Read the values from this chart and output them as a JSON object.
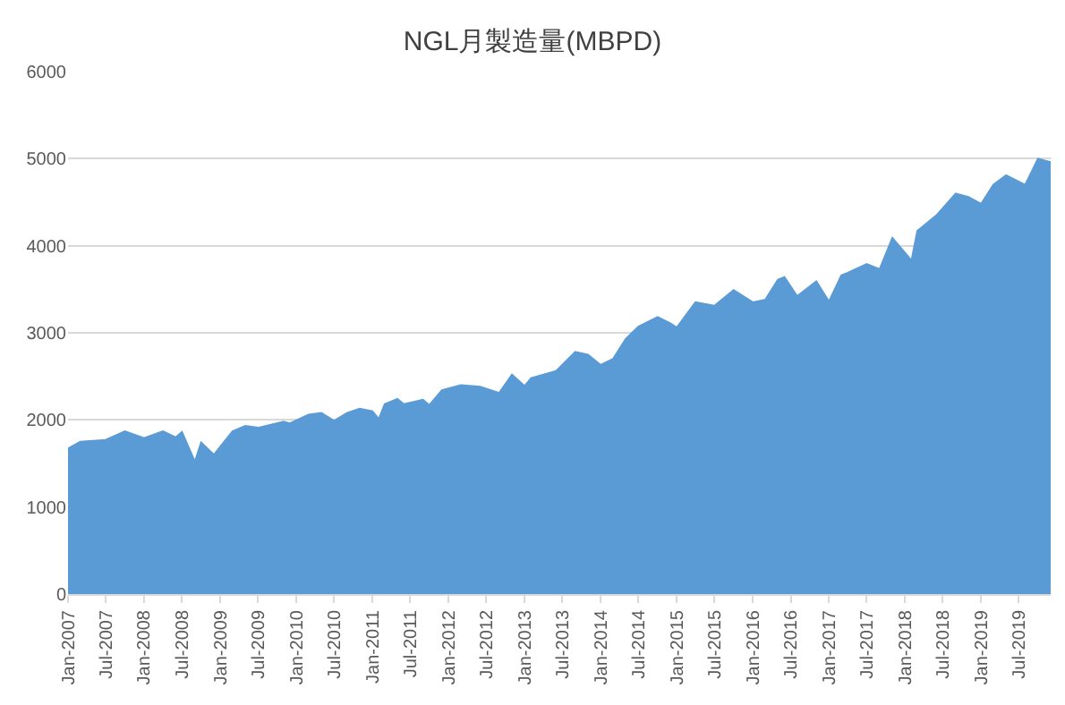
{
  "chart_data": {
    "type": "area",
    "title": "NGL月製造量(MBPD)",
    "x": [
      "2007-01",
      "2007-03",
      "2007-07",
      "2007-10",
      "2008-01",
      "2008-04",
      "2008-06",
      "2008-07",
      "2008-09",
      "2008-10",
      "2008-12",
      "2009-03",
      "2009-05",
      "2009-07",
      "2009-11",
      "2009-12",
      "2010-03",
      "2010-05",
      "2010-07",
      "2010-09",
      "2010-11",
      "2011-01",
      "2011-02",
      "2011-03",
      "2011-05",
      "2011-06",
      "2011-09",
      "2011-10",
      "2011-12",
      "2012-03",
      "2012-06",
      "2012-09",
      "2012-11",
      "2013-01",
      "2013-02",
      "2013-06",
      "2013-09",
      "2013-11",
      "2014-01",
      "2014-03",
      "2014-05",
      "2014-07",
      "2014-10",
      "2014-12",
      "2015-01",
      "2015-04",
      "2015-07",
      "2015-10",
      "2016-01",
      "2016-03",
      "2016-05",
      "2016-06",
      "2016-08",
      "2016-11",
      "2017-01",
      "2017-03",
      "2017-04",
      "2017-07",
      "2017-09",
      "2017-11",
      "2018-02",
      "2018-03",
      "2018-06",
      "2018-09",
      "2018-11",
      "2019-01",
      "2019-03",
      "2019-05",
      "2019-08",
      "2019-10",
      "2019-12"
    ],
    "series": [
      {
        "color": "#5b9bd5",
        "values": [
          1670,
          1750,
          1770,
          1870,
          1790,
          1870,
          1800,
          1860,
          1520,
          1740,
          1600,
          1870,
          1930,
          1910,
          1980,
          1960,
          2060,
          2080,
          1990,
          2080,
          2130,
          2100,
          2010,
          2180,
          2240,
          2180,
          2230,
          2170,
          2340,
          2400,
          2380,
          2310,
          2520,
          2390,
          2480,
          2560,
          2780,
          2750,
          2630,
          2700,
          2930,
          3070,
          3180,
          3110,
          3060,
          3350,
          3310,
          3490,
          3350,
          3380,
          3610,
          3640,
          3420,
          3590,
          3360,
          3660,
          3690,
          3790,
          3730,
          4090,
          3830,
          4170,
          4350,
          4600,
          4560,
          4480,
          4700,
          4810,
          4700,
          5000,
          4960
        ]
      }
    ],
    "xlim": [
      "2007-01",
      "2019-12"
    ],
    "xticks": [
      {
        "value": "2007-01",
        "label": "Jan-2007"
      },
      {
        "value": "2007-07",
        "label": "Jul-2007"
      },
      {
        "value": "2008-01",
        "label": "Jan-2008"
      },
      {
        "value": "2008-07",
        "label": "Jul-2008"
      },
      {
        "value": "2009-01",
        "label": "Jan-2009"
      },
      {
        "value": "2009-07",
        "label": "Jul-2009"
      },
      {
        "value": "2010-01",
        "label": "Jan-2010"
      },
      {
        "value": "2010-07",
        "label": "Jul-2010"
      },
      {
        "value": "2011-01",
        "label": "Jan-2011"
      },
      {
        "value": "2011-07",
        "label": "Jul-2011"
      },
      {
        "value": "2012-01",
        "label": "Jan-2012"
      },
      {
        "value": "2012-07",
        "label": "Jul-2012"
      },
      {
        "value": "2013-01",
        "label": "Jan-2013"
      },
      {
        "value": "2013-07",
        "label": "Jul-2013"
      },
      {
        "value": "2014-01",
        "label": "Jan-2014"
      },
      {
        "value": "2014-07",
        "label": "Jul-2014"
      },
      {
        "value": "2015-01",
        "label": "Jan-2015"
      },
      {
        "value": "2015-07",
        "label": "Jul-2015"
      },
      {
        "value": "2016-01",
        "label": "Jan-2016"
      },
      {
        "value": "2016-07",
        "label": "Jul-2016"
      },
      {
        "value": "2017-01",
        "label": "Jan-2017"
      },
      {
        "value": "2017-07",
        "label": "Jul-2017"
      },
      {
        "value": "2018-01",
        "label": "Jan-2018"
      },
      {
        "value": "2018-07",
        "label": "Jul-2018"
      },
      {
        "value": "2019-01",
        "label": "Jan-2019"
      },
      {
        "value": "2019-07",
        "label": "Jul-2019"
      }
    ],
    "ylim": [
      0,
      6000
    ],
    "yticks": [
      0,
      1000,
      2000,
      3000,
      4000,
      5000,
      6000
    ],
    "grid": "y"
  }
}
